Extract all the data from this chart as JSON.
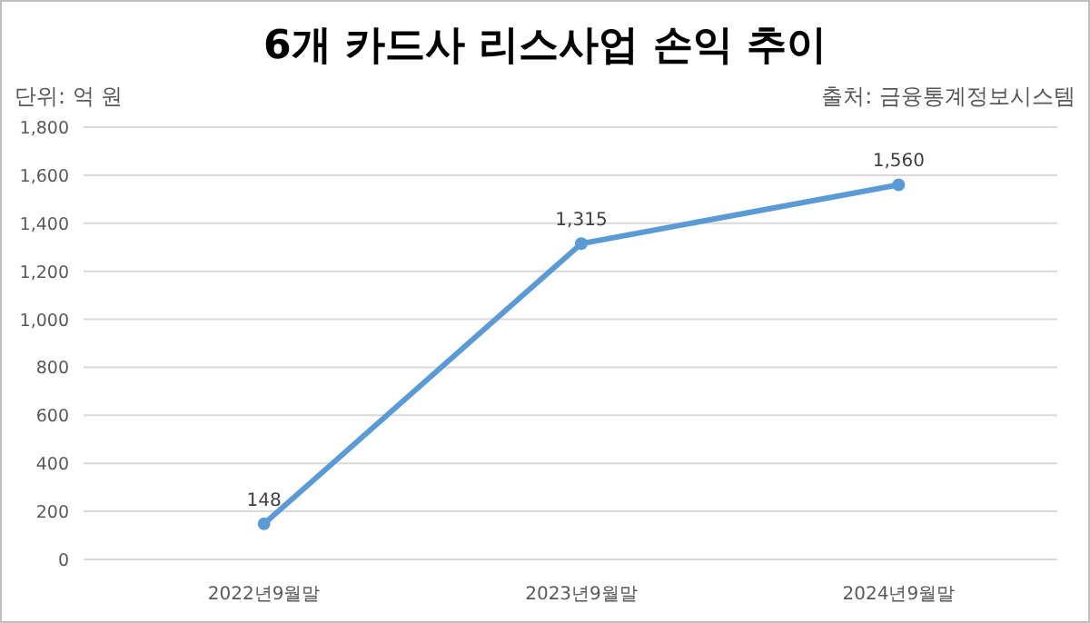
{
  "chart_data": {
    "type": "line",
    "title": "6개 카드사 리스사업 손익 추이",
    "annotations": [
      "단위: 억 원",
      "출처: 금융통계정보시스템"
    ],
    "categories": [
      "2022년9월말",
      "2023년9월말",
      "2024년9월말"
    ],
    "values": [
      148,
      1315,
      1560
    ],
    "value_labels": [
      "148",
      "1,315",
      "1,560"
    ],
    "color": "#5b9bd5",
    "ylim": [
      0,
      1800
    ],
    "yticks": [
      {
        "value": 0,
        "label": "0"
      },
      {
        "value": 200,
        "label": "200"
      },
      {
        "value": 400,
        "label": "400"
      },
      {
        "value": 600,
        "label": "600"
      },
      {
        "value": 800,
        "label": "800"
      },
      {
        "value": 1000,
        "label": "1,000"
      },
      {
        "value": 1200,
        "label": "1,200"
      },
      {
        "value": 1400,
        "label": "1,400"
      },
      {
        "value": 1600,
        "label": "1,600"
      },
      {
        "value": 1800,
        "label": "1,800"
      }
    ],
    "grid": "y",
    "marker": "circle"
  }
}
